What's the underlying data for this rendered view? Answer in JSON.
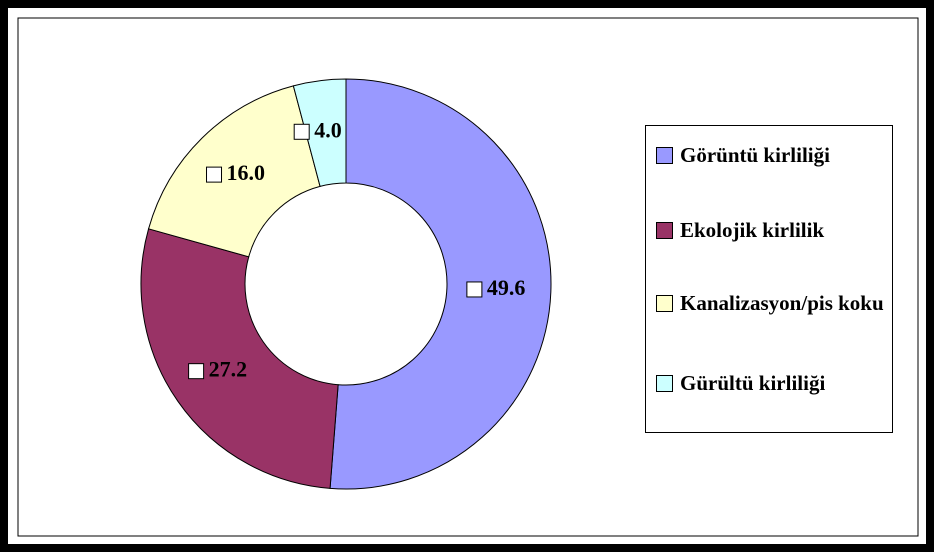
{
  "chart_data": {
    "type": "donut",
    "categories": [
      "Görüntü kirliliği",
      "Ekolojik kirlilik",
      "Kanalizasyon/pis koku",
      "Gürültü kirliliği"
    ],
    "values": [
      49.6,
      27.2,
      16,
      4
    ],
    "value_labels": [
      "49.6",
      "27.2",
      "16.0",
      "4.0"
    ],
    "colors": [
      "#9999ff",
      "#993366",
      "#ffffcc",
      "#ccffff"
    ]
  }
}
